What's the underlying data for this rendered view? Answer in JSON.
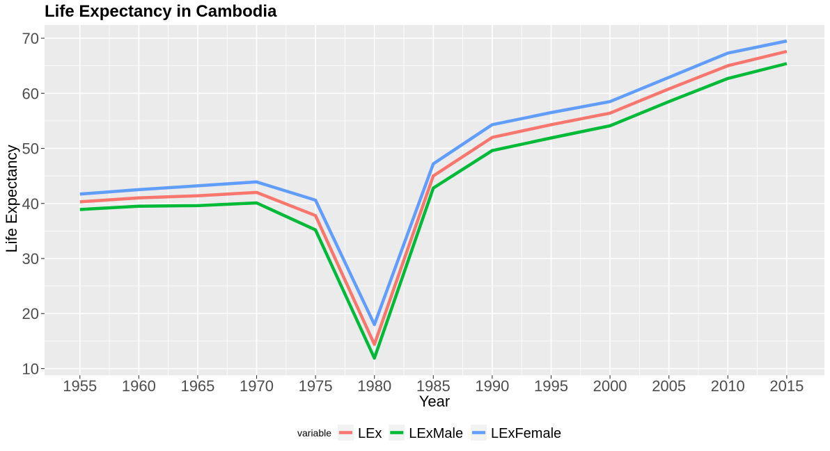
{
  "chart_data": {
    "type": "line",
    "title": "Life Expectancy in Cambodia",
    "xlabel": "Year",
    "ylabel": "Life Expectancy",
    "x": [
      1955,
      1960,
      1965,
      1970,
      1975,
      1980,
      1985,
      1990,
      1995,
      2000,
      2005,
      2010,
      2015
    ],
    "x_ticks": [
      "1955",
      "1960",
      "1965",
      "1970",
      "1975",
      "1980",
      "1985",
      "1990",
      "1995",
      "2000",
      "2005",
      "2010",
      "2015"
    ],
    "y_ticks": [
      "10",
      "20",
      "30",
      "40",
      "50",
      "60",
      "70"
    ],
    "xlim": [
      1952,
      2018.2
    ],
    "ylim": [
      8.8,
      72.4
    ],
    "grid": true,
    "legend": {
      "title": "variable",
      "position": "bottom"
    },
    "series": [
      {
        "name": "LEx",
        "color": "#F8766D",
        "values": [
          40.3,
          41.0,
          41.4,
          42.0,
          37.8,
          14.4,
          45.0,
          52.0,
          54.3,
          56.4,
          60.8,
          65.0,
          67.6
        ]
      },
      {
        "name": "LExMale",
        "color": "#00BA38",
        "values": [
          38.9,
          39.5,
          39.6,
          40.1,
          35.2,
          11.9,
          42.8,
          49.6,
          51.9,
          54.1,
          58.5,
          62.7,
          65.4
        ]
      },
      {
        "name": "LExFemale",
        "color": "#619CFF",
        "values": [
          41.7,
          42.5,
          43.2,
          43.9,
          40.6,
          18.0,
          47.2,
          54.3,
          56.5,
          58.5,
          62.9,
          67.3,
          69.5
        ]
      }
    ]
  }
}
